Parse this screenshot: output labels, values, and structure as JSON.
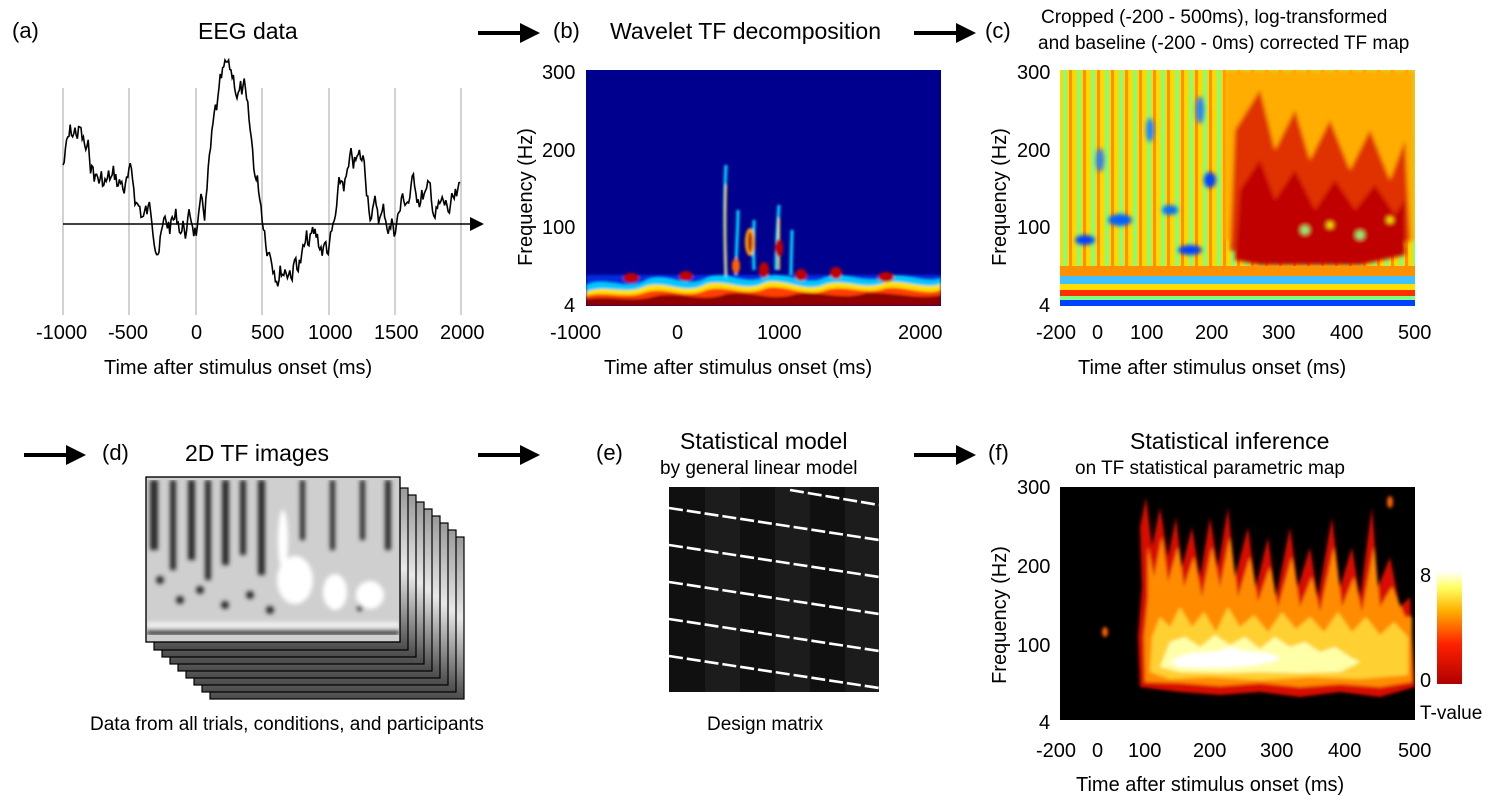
{
  "panels": {
    "a": {
      "label": "(a)",
      "title": "EEG data",
      "xticks": [
        "-1000",
        "-500",
        "0",
        "500",
        "1000",
        "1500",
        "2000"
      ],
      "xlabel": "Time after stimulus onset (ms)"
    },
    "b": {
      "label": "(b)",
      "title": "Wavelet TF decomposition",
      "xticks": [
        "-1000",
        "0",
        "1000",
        "2000"
      ],
      "yticks": [
        "300",
        "200",
        "100",
        "4"
      ],
      "ylabel": "Frequency (Hz)",
      "xlabel": "Time after stimulus onset (ms)"
    },
    "c": {
      "label": "(c)",
      "title_line1": "Cropped (-200 - 500ms), log-transformed",
      "title_line2": "and baseline (-200 - 0ms) corrected TF map",
      "xticks": [
        "-200",
        "0",
        "100",
        "200",
        "300",
        "400",
        "500"
      ],
      "yticks": [
        "300",
        "200",
        "100",
        "4"
      ],
      "ylabel": "Frequency (Hz)",
      "xlabel": "Time after stimulus onset (ms)"
    },
    "d": {
      "label": "(d)",
      "title": "2D TF images",
      "caption": "Data from all trials, conditions, and participants"
    },
    "e": {
      "label": "(e)",
      "title": "Statistical model",
      "subtitle": "by general linear model",
      "caption": "Design matrix"
    },
    "f": {
      "label": "(f)",
      "title": "Statistical inference",
      "subtitle": "on TF statistical parametric map",
      "xticks": [
        "-200",
        "0",
        "100",
        "200",
        "300",
        "400",
        "500"
      ],
      "yticks": [
        "300",
        "200",
        "100",
        "4"
      ],
      "ylabel": "Frequency (Hz)",
      "xlabel": "Time after stimulus onset (ms)",
      "colorbar_max": "8",
      "colorbar_min": "0",
      "colorbar_label": "T-value"
    }
  },
  "colors": {
    "jet_dark_blue": "#00008f",
    "jet_red": "#b00000",
    "hot_yellow": "#ffee40",
    "background": "#ffffff"
  },
  "icons": [
    "right-arrow-icon"
  ]
}
